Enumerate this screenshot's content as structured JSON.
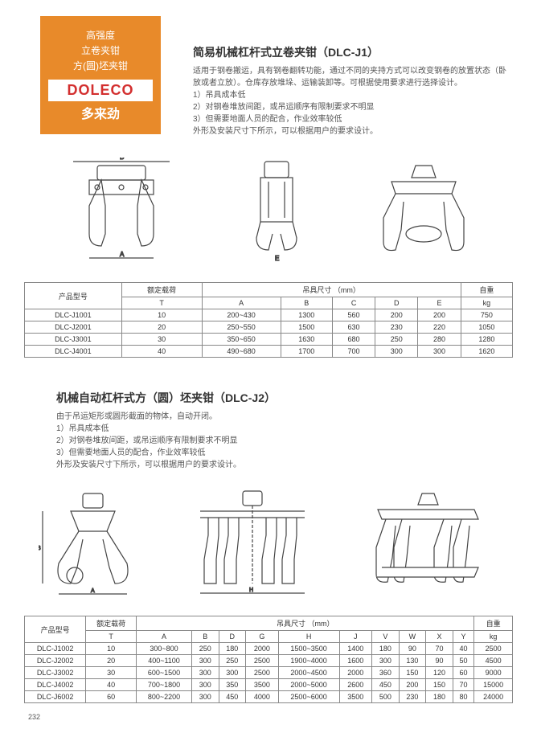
{
  "badge": {
    "line1": "高强度",
    "line2": "立卷夹钳",
    "line3": "方(圆)坯夹钳",
    "logo": "DOLECO",
    "chinese": "多来劲"
  },
  "section1": {
    "title": "简易机械杠杆式立卷夹钳（DLC-J1）",
    "desc1": "适用于钢卷搬运，具有钢卷翻转功能，通过不同的夹持方式可以改变钢卷的放置状态（卧放或者立放）。仓库存放堆垛、运输装卸等。可根据使用要求进行选择设计。",
    "li1": "1）吊具成本低",
    "li2": "2）对钢卷堆放间距，或吊运顺序有限制要求不明显",
    "li3": "3）但需要地面人员的配合，作业效率较低",
    "desc2": "外形及安装尺寸下所示，可以根据用户的要求设计。"
  },
  "table1": {
    "h_model": "产品型号",
    "h_load": "额定载荷",
    "h_dim": "吊具尺寸 （mm）",
    "h_weight": "自重",
    "h_T": "T",
    "h_A": "A",
    "h_B": "B",
    "h_C": "C",
    "h_D": "D",
    "h_E": "E",
    "h_kg": "kg",
    "rows": [
      {
        "model": "DLC-J1001",
        "T": "10",
        "A": "200~430",
        "B": "1300",
        "C": "560",
        "D": "200",
        "E": "200",
        "kg": "750"
      },
      {
        "model": "DLC-J2001",
        "T": "20",
        "A": "250~550",
        "B": "1500",
        "C": "630",
        "D": "230",
        "E": "220",
        "kg": "1050"
      },
      {
        "model": "DLC-J3001",
        "T": "30",
        "A": "350~650",
        "B": "1630",
        "C": "680",
        "D": "250",
        "E": "280",
        "kg": "1280"
      },
      {
        "model": "DLC-J4001",
        "T": "40",
        "A": "490~680",
        "B": "1700",
        "C": "700",
        "D": "300",
        "E": "300",
        "kg": "1620"
      }
    ]
  },
  "section2": {
    "title": "机械自动杠杆式方（圆）坯夹钳（DLC-J2）",
    "desc1": "由于吊运矩形或圆形截面的物体，自动开闭。",
    "li1": "1）吊具成本低",
    "li2": "2）对钢卷堆放间距，或吊运顺序有限制要求不明显",
    "li3": "3）但需要地面人员的配合，作业效率较低",
    "desc2": "外形及安装尺寸下所示，可以根据用户的要求设计。"
  },
  "table2": {
    "h_model": "产品型号",
    "h_load": "额定载荷",
    "h_dim": "吊具尺寸 （mm）",
    "h_weight": "自重",
    "h_T": "T",
    "h_A": "A",
    "h_B": "B",
    "h_D": "D",
    "h_G": "G",
    "h_H": "H",
    "h_J": "J",
    "h_V": "V",
    "h_W": "W",
    "h_X": "X",
    "h_Y": "Y",
    "h_kg": "kg",
    "rows": [
      {
        "model": "DLC-J1002",
        "T": "10",
        "A": "300~800",
        "B": "250",
        "D": "180",
        "G": "2000",
        "H": "1500~3500",
        "J": "1400",
        "V": "180",
        "W": "90",
        "X": "70",
        "Y": "40",
        "kg": "2500"
      },
      {
        "model": "DLC-J2002",
        "T": "20",
        "A": "400~1100",
        "B": "300",
        "D": "250",
        "G": "2500",
        "H": "1900~4000",
        "J": "1600",
        "V": "300",
        "W": "130",
        "X": "90",
        "Y": "50",
        "kg": "4500"
      },
      {
        "model": "DLC-J3002",
        "T": "30",
        "A": "600~1500",
        "B": "300",
        "D": "300",
        "G": "2500",
        "H": "2000~4500",
        "J": "2000",
        "V": "360",
        "W": "150",
        "X": "120",
        "Y": "60",
        "kg": "9000"
      },
      {
        "model": "DLC-J4002",
        "T": "40",
        "A": "700~1800",
        "B": "300",
        "D": "350",
        "G": "3500",
        "H": "2000~5000",
        "J": "2600",
        "V": "450",
        "W": "200",
        "X": "150",
        "Y": "70",
        "kg": "15000"
      },
      {
        "model": "DLC-J6002",
        "T": "60",
        "A": "800~2200",
        "B": "300",
        "D": "450",
        "G": "4000",
        "H": "2500~6000",
        "J": "3500",
        "V": "500",
        "W": "230",
        "X": "180",
        "Y": "80",
        "kg": "24000"
      }
    ]
  },
  "page_number": "232"
}
